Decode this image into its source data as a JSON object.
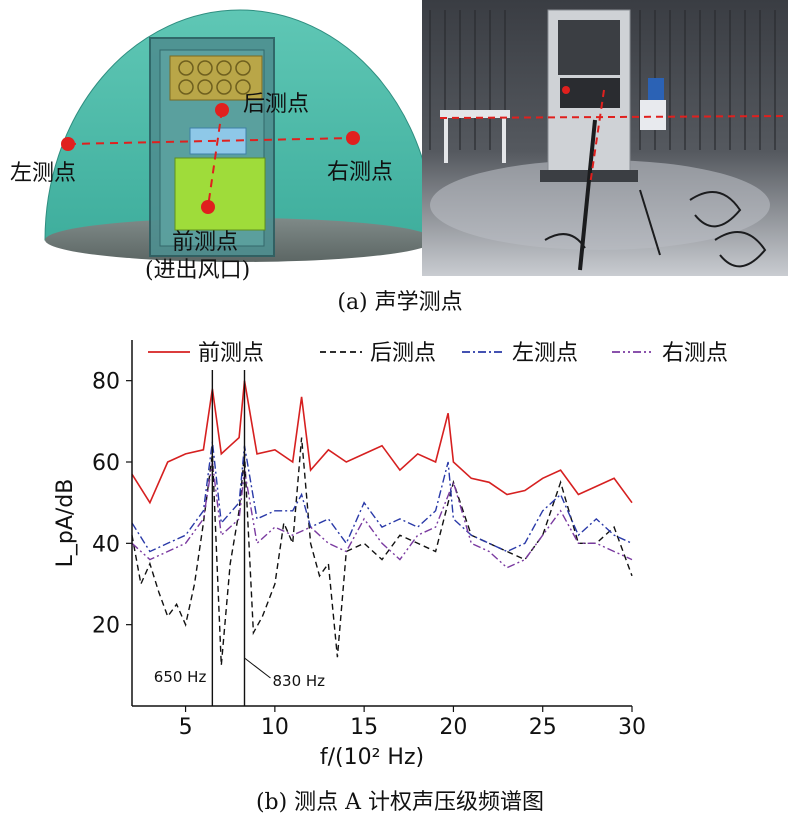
{
  "figure_a": {
    "caption": "(a) 声学测点",
    "labels": {
      "left": "左测点",
      "right": "右测点",
      "back": "后测点",
      "front": "前测点",
      "front_note": "(进出风口)"
    }
  },
  "figure_b": {
    "caption": "(b) 测点 A 计权声压级频谱图"
  },
  "chart_data": {
    "type": "line",
    "xlabel": "f/(10² Hz)",
    "ylabel": "L_pA/dB",
    "xlim": [
      2,
      30
    ],
    "ylim": [
      0,
      90
    ],
    "xticks": [
      5,
      10,
      15,
      20,
      25,
      30
    ],
    "yticks": [
      20,
      40,
      60,
      80
    ],
    "legend_position": "top",
    "annotations": [
      {
        "text": "650 Hz",
        "x": 6.5
      },
      {
        "text": "830 Hz",
        "x": 8.3
      }
    ],
    "series": [
      {
        "name": "前测点",
        "color": "#d62020",
        "dash": "solid",
        "x": [
          2,
          3,
          4,
          5,
          6,
          6.5,
          7,
          7.5,
          8,
          8.3,
          9,
          10,
          11,
          11.5,
          12,
          13,
          14,
          15,
          16,
          17,
          18,
          19,
          19.7,
          20,
          21,
          22,
          23,
          24,
          25,
          26,
          27,
          28,
          29,
          30
        ],
        "y": [
          57,
          50,
          60,
          62,
          63,
          78,
          62,
          64,
          66,
          80,
          62,
          63,
          60,
          76,
          58,
          63,
          60,
          62,
          64,
          58,
          62,
          60,
          72,
          60,
          56,
          55,
          52,
          53,
          56,
          58,
          52,
          54,
          56,
          50
        ]
      },
      {
        "name": "后测点",
        "color": "#111111",
        "dash": "6,4",
        "x": [
          2,
          2.5,
          3,
          3.5,
          4,
          4.5,
          5,
          5.5,
          6,
          6.5,
          7,
          7.5,
          8,
          8.3,
          8.8,
          9.3,
          10,
          10.5,
          11,
          11.5,
          12,
          12.5,
          13,
          13.5,
          14,
          15,
          16,
          17,
          18,
          19,
          20,
          21,
          22,
          23,
          24,
          25,
          26,
          27,
          28,
          29,
          30
        ],
        "y": [
          42,
          30,
          35,
          28,
          22,
          25,
          20,
          30,
          45,
          62,
          10,
          35,
          48,
          62,
          18,
          22,
          30,
          45,
          40,
          66,
          40,
          32,
          35,
          12,
          38,
          40,
          36,
          42,
          40,
          38,
          55,
          42,
          40,
          38,
          36,
          42,
          55,
          40,
          40,
          44,
          32
        ]
      },
      {
        "name": "左测点",
        "color": "#2a3aa8",
        "dash": "8,3,2,3",
        "x": [
          2,
          3,
          4,
          5,
          6,
          6.5,
          7,
          8,
          8.3,
          9,
          10,
          11,
          11.5,
          12,
          13,
          14,
          15,
          16,
          17,
          18,
          19,
          19.7,
          20,
          21,
          22,
          23,
          24,
          25,
          26,
          27,
          28,
          29,
          30
        ],
        "y": [
          45,
          38,
          40,
          42,
          48,
          65,
          45,
          50,
          64,
          46,
          48,
          48,
          52,
          44,
          46,
          40,
          50,
          44,
          46,
          44,
          48,
          60,
          46,
          42,
          40,
          38,
          40,
          48,
          52,
          42,
          46,
          42,
          40
        ]
      },
      {
        "name": "右测点",
        "color": "#7a3aa0",
        "dash": "8,3,2,3,2,3",
        "x": [
          2,
          3,
          4,
          5,
          6,
          6.5,
          7,
          8,
          8.3,
          9,
          10,
          11,
          12,
          13,
          14,
          15,
          16,
          17,
          18,
          19,
          20,
          21,
          22,
          23,
          24,
          25,
          26,
          27,
          28,
          29,
          30
        ],
        "y": [
          40,
          36,
          38,
          40,
          46,
          60,
          42,
          46,
          58,
          40,
          44,
          42,
          44,
          40,
          38,
          46,
          40,
          36,
          42,
          44,
          55,
          40,
          38,
          34,
          36,
          42,
          48,
          40,
          40,
          38,
          36
        ]
      }
    ]
  }
}
